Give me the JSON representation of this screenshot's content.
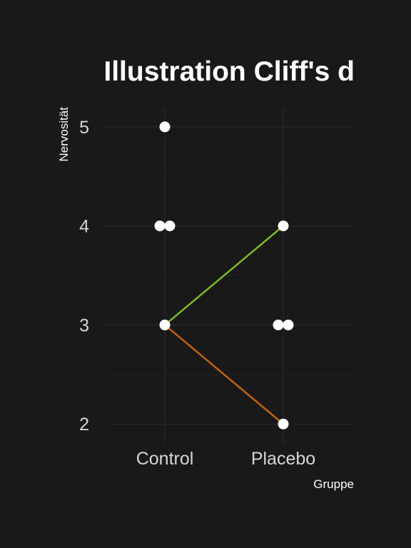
{
  "chart_data": {
    "type": "scatter",
    "title": "Illustration Cliff's d",
    "xlabel": "Gruppe",
    "ylabel": "Nervosität",
    "categories": [
      "Control",
      "Placebo"
    ],
    "ylim": [
      1.8,
      5.2
    ],
    "yticks": [
      2,
      3,
      4,
      5
    ],
    "grid": true,
    "points": [
      {
        "category": "Control",
        "value": 5
      },
      {
        "category": "Control",
        "value": 4
      },
      {
        "category": "Control",
        "value": 4
      },
      {
        "category": "Control",
        "value": 3
      },
      {
        "category": "Placebo",
        "value": 4
      },
      {
        "category": "Placebo",
        "value": 3
      },
      {
        "category": "Placebo",
        "value": 3
      },
      {
        "category": "Placebo",
        "value": 2
      }
    ],
    "comparison_lines": [
      {
        "from": {
          "category": "Control",
          "value": 3
        },
        "to": {
          "category": "Placebo",
          "value": 4
        },
        "color": "#7dbb1f"
      },
      {
        "from": {
          "category": "Control",
          "value": 3
        },
        "to": {
          "category": "Placebo",
          "value": 2
        },
        "color": "#c0620e"
      }
    ],
    "colors": {
      "background": "#191919",
      "grid": "#2b2b2b",
      "text": "#d6d6d6",
      "title": "#ffffff",
      "point": "#ffffff"
    }
  }
}
